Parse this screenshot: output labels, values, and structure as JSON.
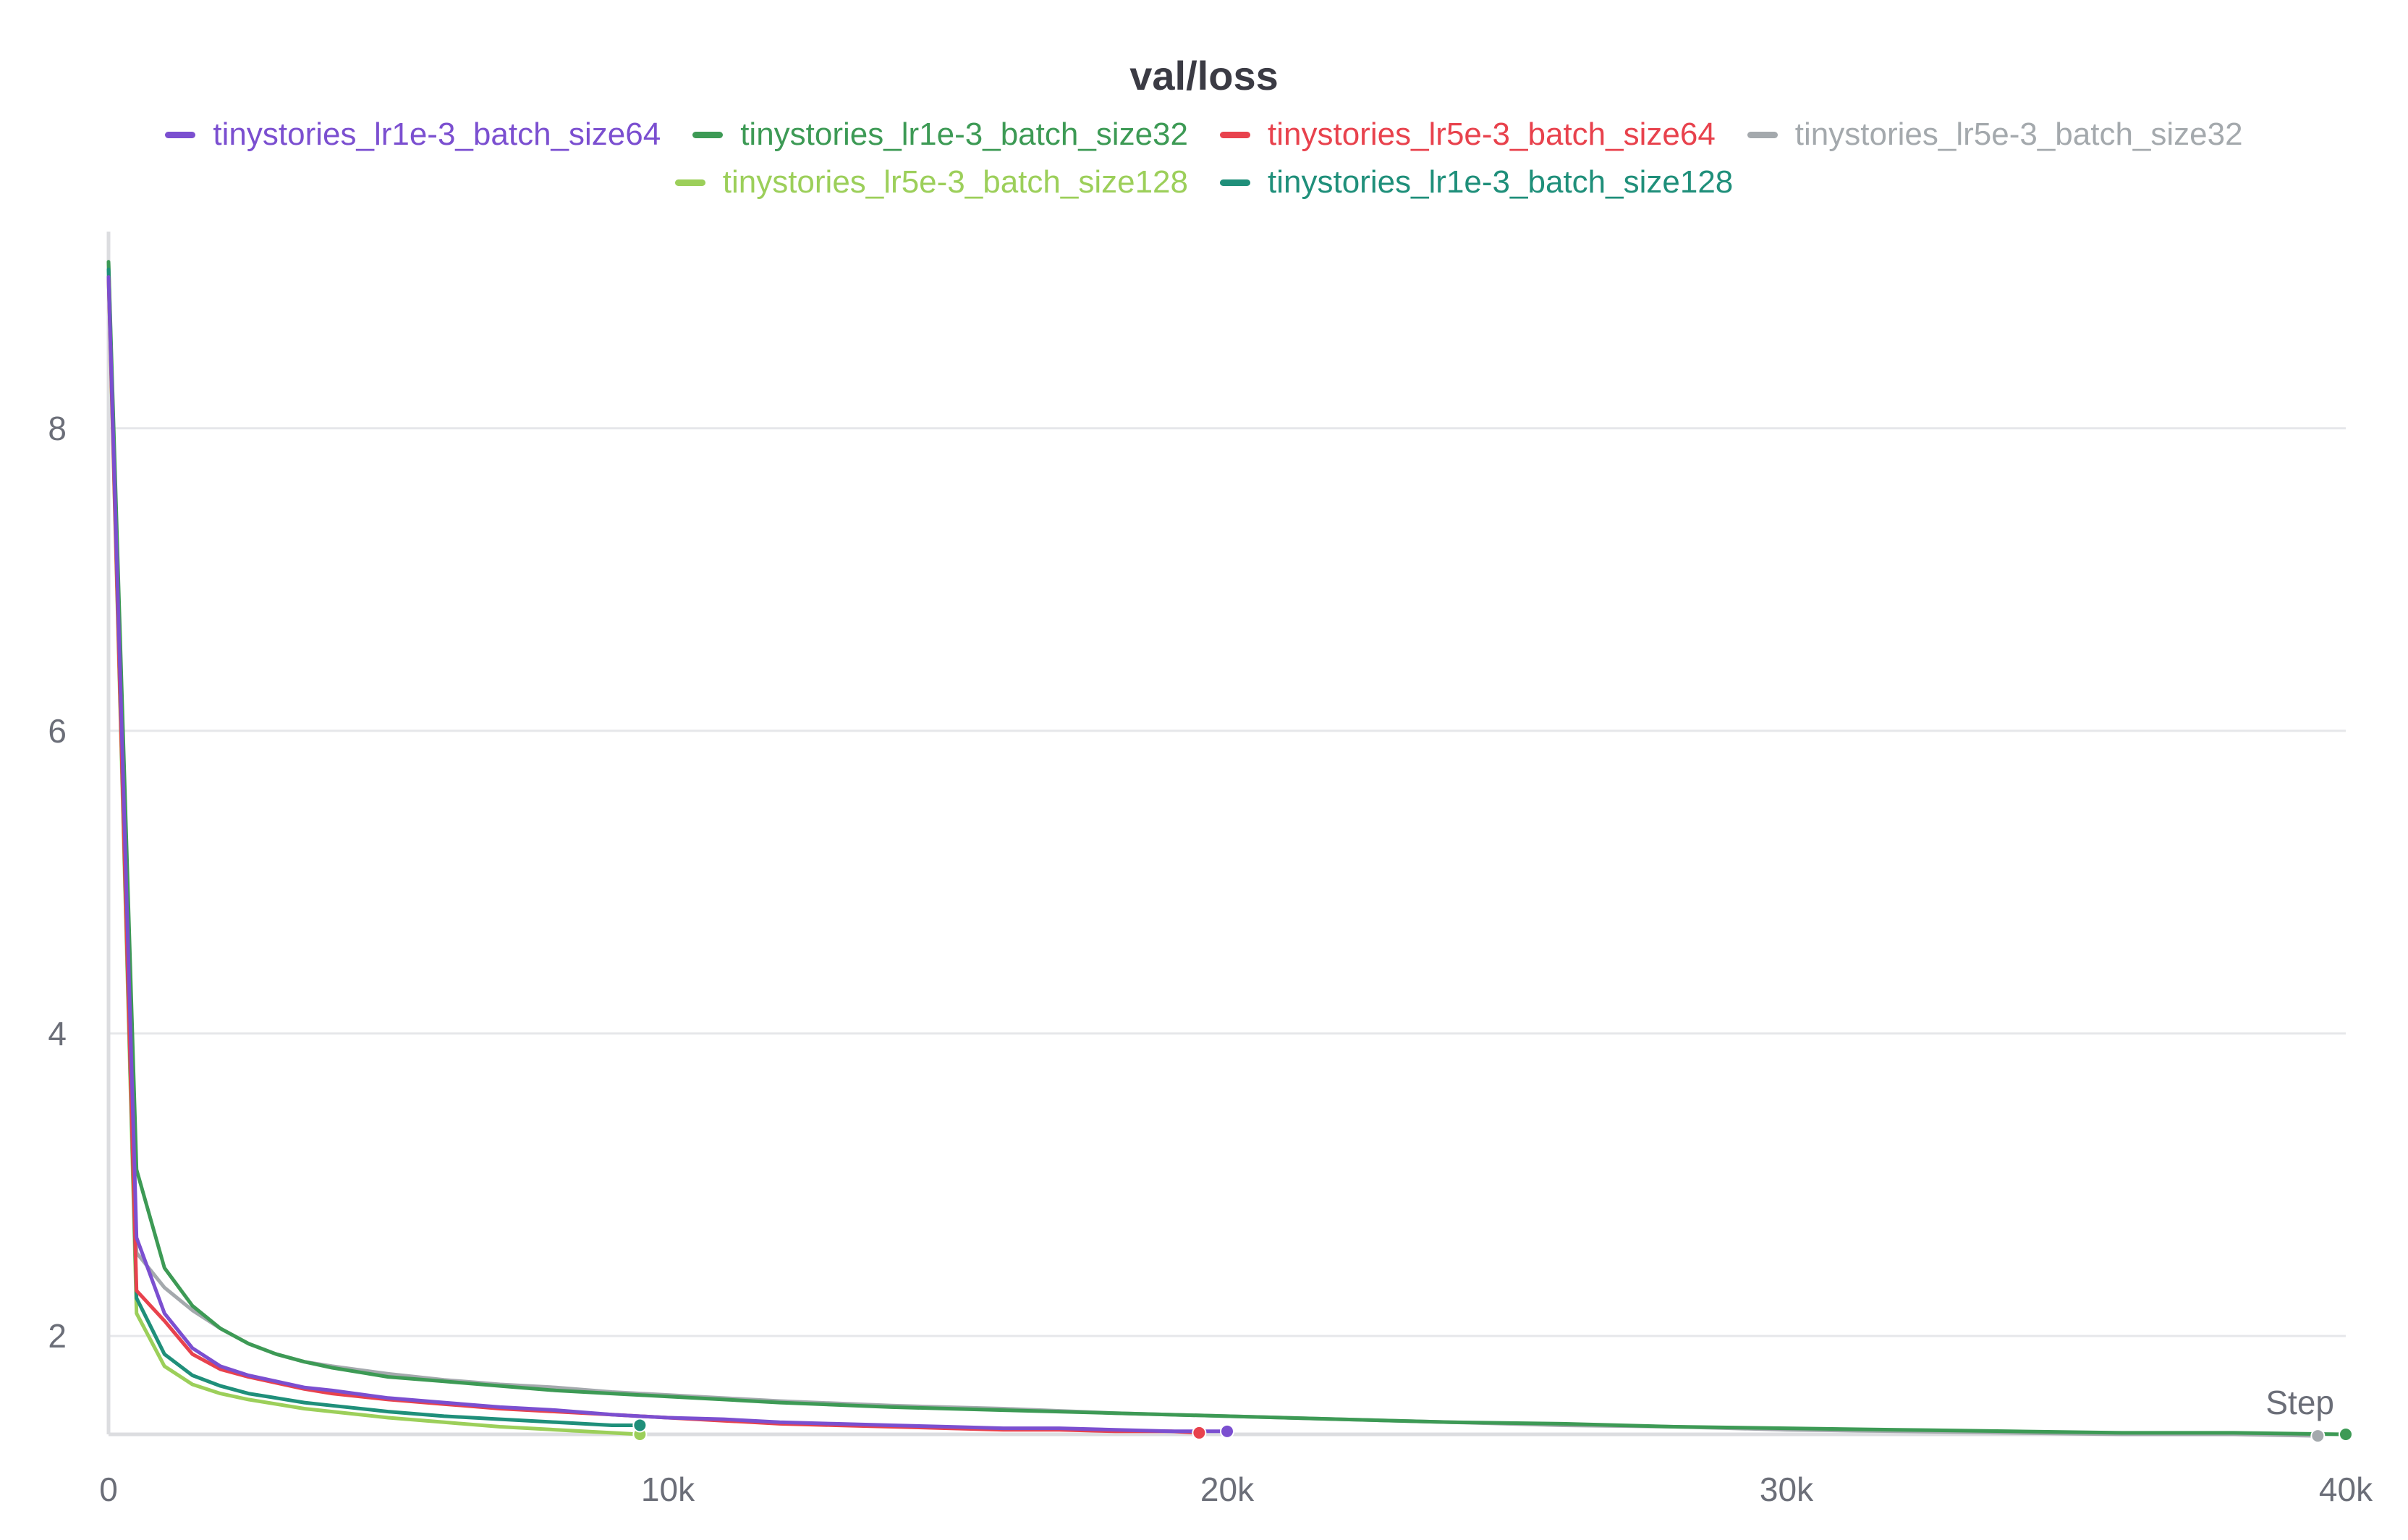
{
  "chart_data": {
    "type": "line",
    "title": "val/loss",
    "xlabel": "Step",
    "ylabel": "",
    "xlim": [
      0,
      40000
    ],
    "ylim": [
      1.35,
      9.3
    ],
    "grid": true,
    "legend_position": "top-center",
    "x_ticks": [
      {
        "value": 0,
        "label": "0"
      },
      {
        "value": 10000,
        "label": "10k"
      },
      {
        "value": 20000,
        "label": "20k"
      },
      {
        "value": 30000,
        "label": "30k"
      },
      {
        "value": 40000,
        "label": "40k"
      }
    ],
    "y_ticks": [
      {
        "value": 2,
        "label": "2"
      },
      {
        "value": 4,
        "label": "4"
      },
      {
        "value": 6,
        "label": "6"
      },
      {
        "value": 8,
        "label": "8"
      }
    ],
    "series": [
      {
        "name": "tinystories_lr1e-3_batch_size64",
        "color": "#7b4fd0",
        "end_marker": true,
        "x": [
          0,
          500,
          1000,
          1500,
          2000,
          2500,
          3000,
          3500,
          4000,
          5000,
          6000,
          7000,
          8000,
          9000,
          10000,
          11000,
          12000,
          13000,
          14000,
          15000,
          16000,
          17000,
          18000,
          19000,
          20000
        ],
        "y": [
          9.0,
          2.65,
          2.15,
          1.92,
          1.8,
          1.74,
          1.7,
          1.66,
          1.64,
          1.59,
          1.56,
          1.53,
          1.51,
          1.48,
          1.46,
          1.45,
          1.43,
          1.42,
          1.41,
          1.4,
          1.39,
          1.39,
          1.38,
          1.37,
          1.37
        ]
      },
      {
        "name": "tinystories_lr1e-3_batch_size32",
        "color": "#3d9a55",
        "end_marker": true,
        "x": [
          0,
          500,
          1000,
          1500,
          2000,
          2500,
          3000,
          3500,
          4000,
          5000,
          6000,
          7000,
          8000,
          9000,
          10000,
          12000,
          14000,
          16000,
          18000,
          20000,
          22000,
          24000,
          26000,
          28000,
          30000,
          32000,
          34000,
          36000,
          38000,
          40000
        ],
        "y": [
          9.1,
          3.1,
          2.45,
          2.2,
          2.05,
          1.95,
          1.88,
          1.83,
          1.79,
          1.73,
          1.7,
          1.67,
          1.64,
          1.62,
          1.6,
          1.56,
          1.53,
          1.51,
          1.49,
          1.47,
          1.45,
          1.43,
          1.42,
          1.4,
          1.39,
          1.38,
          1.37,
          1.36,
          1.36,
          1.35
        ]
      },
      {
        "name": "tinystories_lr5e-3_batch_size64",
        "color": "#e8424d",
        "end_marker": true,
        "x": [
          0,
          500,
          1000,
          1500,
          2000,
          2500,
          3000,
          3500,
          4000,
          5000,
          6000,
          7000,
          8000,
          9000,
          10000,
          11000,
          12000,
          13000,
          14000,
          15000,
          16000,
          17000,
          18000,
          19000,
          19500
        ],
        "y": [
          9.0,
          2.3,
          2.1,
          1.88,
          1.78,
          1.73,
          1.69,
          1.65,
          1.62,
          1.58,
          1.55,
          1.52,
          1.5,
          1.48,
          1.46,
          1.44,
          1.42,
          1.41,
          1.4,
          1.39,
          1.38,
          1.38,
          1.37,
          1.37,
          1.36
        ]
      },
      {
        "name": "tinystories_lr5e-3_batch_size32",
        "color": "#a4a9ad",
        "end_marker": true,
        "x": [
          0,
          500,
          1000,
          1500,
          2000,
          2500,
          3000,
          3500,
          4000,
          5000,
          6000,
          7000,
          8000,
          9000,
          10000,
          12000,
          14000,
          16000,
          18000,
          20000,
          22000,
          24000,
          26000,
          28000,
          30000,
          32000,
          34000,
          36000,
          38000,
          39500
        ],
        "y": [
          9.1,
          2.55,
          2.32,
          2.17,
          2.05,
          1.95,
          1.88,
          1.83,
          1.8,
          1.75,
          1.71,
          1.68,
          1.66,
          1.63,
          1.61,
          1.57,
          1.54,
          1.52,
          1.49,
          1.47,
          1.45,
          1.43,
          1.41,
          1.4,
          1.38,
          1.37,
          1.36,
          1.35,
          1.35,
          1.34
        ]
      },
      {
        "name": "tinystories_lr5e-3_batch_size128",
        "color": "#9ccf5a",
        "end_marker": true,
        "x": [
          0,
          500,
          1000,
          1500,
          2000,
          2500,
          3000,
          3500,
          4000,
          5000,
          6000,
          7000,
          8000,
          9000,
          9500
        ],
        "y": [
          9.0,
          2.15,
          1.8,
          1.68,
          1.62,
          1.58,
          1.55,
          1.52,
          1.5,
          1.46,
          1.43,
          1.4,
          1.38,
          1.36,
          1.35
        ]
      },
      {
        "name": "tinystories_lr1e-3_batch_size128",
        "color": "#1f8f7a",
        "end_marker": true,
        "x": [
          0,
          500,
          1000,
          1500,
          2000,
          2500,
          3000,
          3500,
          4000,
          5000,
          6000,
          7000,
          8000,
          9000,
          9500
        ],
        "y": [
          9.05,
          2.25,
          1.88,
          1.74,
          1.67,
          1.62,
          1.59,
          1.56,
          1.54,
          1.5,
          1.47,
          1.45,
          1.43,
          1.41,
          1.41
        ]
      }
    ]
  }
}
